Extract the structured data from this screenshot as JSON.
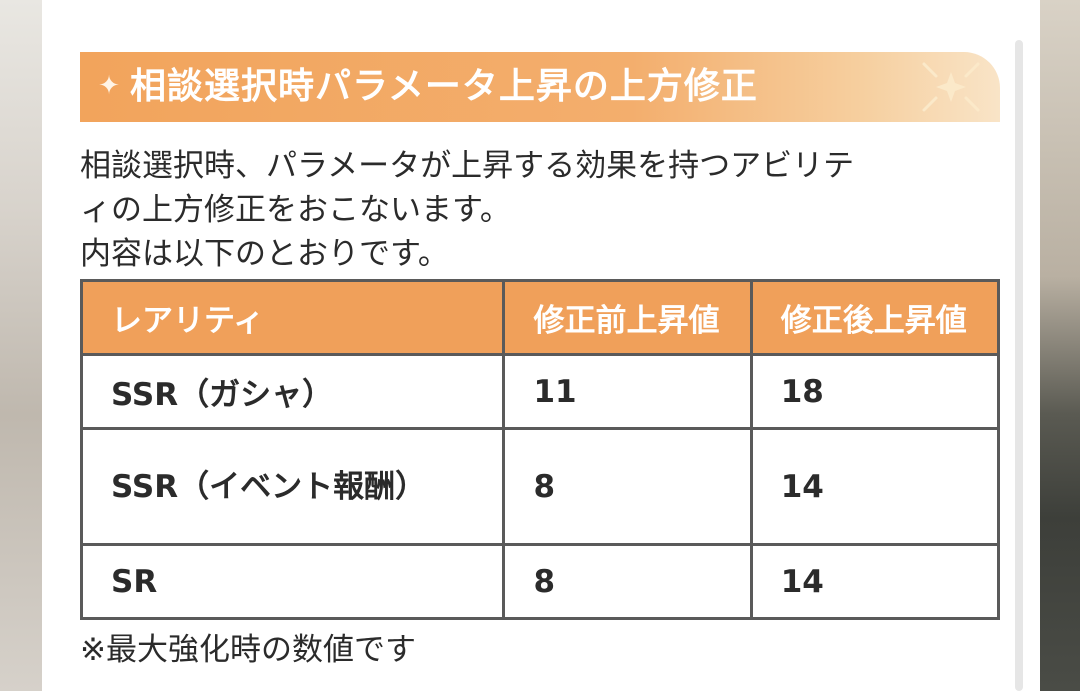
{
  "heading": {
    "title": "相談選択時パラメータ上昇の上方修正",
    "star_glyph": "✦"
  },
  "description": {
    "lines": [
      "相談選択時、パラメータが上昇する効果を持つアビリテ",
      "ィの上方修正をおこないます。",
      "内容は以下のとおりです。"
    ]
  },
  "table": {
    "headers": [
      "レアリティ",
      "修正前上昇値",
      "修正後上昇値"
    ],
    "rows": [
      {
        "rarity": "SSR（ガシャ）",
        "before": "11",
        "after": "18"
      },
      {
        "rarity": "SSR（イベント報酬）",
        "before": "8",
        "after": "14"
      },
      {
        "rarity": "SR",
        "before": "8",
        "after": "14"
      }
    ]
  },
  "note": "※最大強化時の数値です",
  "colors": {
    "accent": "#f0a05a",
    "header_text": "#ffffff",
    "body_text": "#2b2b2b",
    "table_border": "#5a5a5a"
  }
}
